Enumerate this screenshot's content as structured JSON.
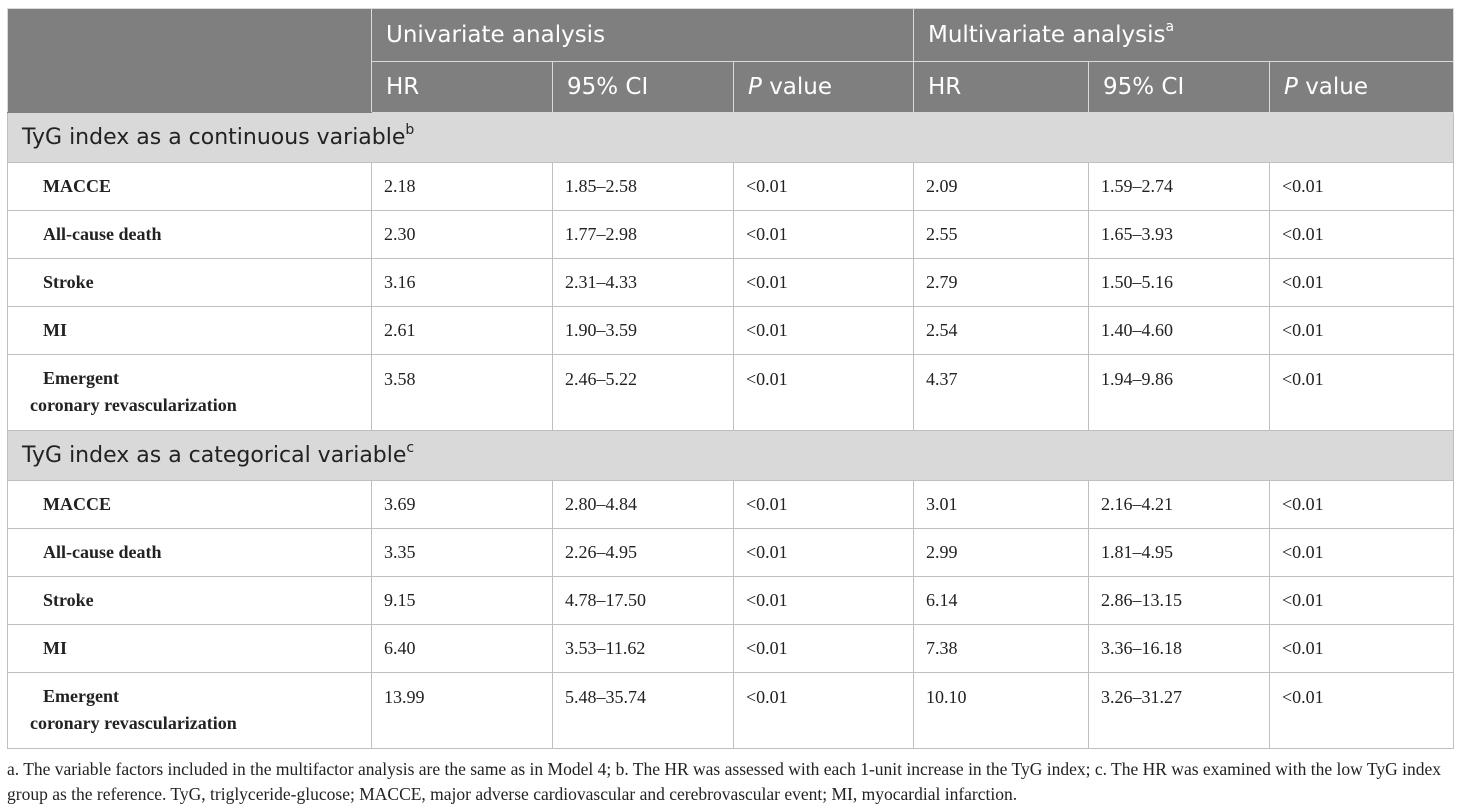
{
  "header": {
    "group_univariate": "Univariate analysis",
    "group_multivariate": "Multivariate analysis",
    "group_multivariate_sup": "a",
    "columns": [
      "HR",
      "95% CI",
      "P",
      "value",
      "HR",
      "95% CI",
      "P",
      "value"
    ]
  },
  "sections": [
    {
      "title": "TyG index as a continuous variable",
      "sup": "b",
      "rows": [
        {
          "label": "MACCE",
          "label2": "",
          "u_hr": "2.18",
          "u_ci": "1.85–2.58",
          "u_p": "<0.01",
          "m_hr": "2.09",
          "m_ci": "1.59–2.74",
          "m_p": "<0.01"
        },
        {
          "label": "All-cause death",
          "label2": "",
          "u_hr": "2.30",
          "u_ci": "1.77–2.98",
          "u_p": "<0.01",
          "m_hr": "2.55",
          "m_ci": "1.65–3.93",
          "m_p": "<0.01"
        },
        {
          "label": "Stroke",
          "label2": "",
          "u_hr": "3.16",
          "u_ci": "2.31–4.33",
          "u_p": "<0.01",
          "m_hr": "2.79",
          "m_ci": "1.50–5.16",
          "m_p": "<0.01"
        },
        {
          "label": "MI",
          "label2": "",
          "u_hr": "2.61",
          "u_ci": "1.90–3.59",
          "u_p": "<0.01",
          "m_hr": "2.54",
          "m_ci": "1.40–4.60",
          "m_p": "<0.01"
        },
        {
          "label": "Emergent",
          "label2": "coronary revascularization",
          "u_hr": "3.58",
          "u_ci": "2.46–5.22",
          "u_p": "<0.01",
          "m_hr": "4.37",
          "m_ci": "1.94–9.86",
          "m_p": "<0.01"
        }
      ]
    },
    {
      "title": "TyG index as a categorical variable",
      "sup": "c",
      "rows": [
        {
          "label": "MACCE",
          "label2": "",
          "u_hr": "3.69",
          "u_ci": "2.80–4.84",
          "u_p": "<0.01",
          "m_hr": "3.01",
          "m_ci": "2.16–4.21",
          "m_p": "<0.01"
        },
        {
          "label": "All-cause death",
          "label2": "",
          "u_hr": "3.35",
          "u_ci": "2.26–4.95",
          "u_p": "<0.01",
          "m_hr": "2.99",
          "m_ci": "1.81–4.95",
          "m_p": "<0.01"
        },
        {
          "label": "Stroke",
          "label2": "",
          "u_hr": "9.15",
          "u_ci": "4.78–17.50",
          "u_p": "<0.01",
          "m_hr": "6.14",
          "m_ci": "2.86–13.15",
          "m_p": "<0.01"
        },
        {
          "label": "MI",
          "label2": "",
          "u_hr": "6.40",
          "u_ci": "3.53–11.62",
          "u_p": "<0.01",
          "m_hr": "7.38",
          "m_ci": "3.36–16.18",
          "m_p": "<0.01"
        },
        {
          "label": "Emergent",
          "label2": "coronary revascularization",
          "u_hr": "13.99",
          "u_ci": "5.48–35.74",
          "u_p": "<0.01",
          "m_hr": "10.10",
          "m_ci": "3.26–31.27",
          "m_p": "<0.01"
        }
      ]
    }
  ],
  "footnote": "a. The variable factors included in the multifactor analysis are the same as in Model 4; b. The HR was assessed with each 1-unit increase in the TyG index; c. The HR was examined with the low TyG index group as the reference. TyG, triglyceride-glucose; MACCE, major adverse cardiovascular and cerebrovascular event; MI, myocardial infarction.",
  "colors": {
    "header_bg": "#7f7f7f",
    "section_bg": "#d9d9d9",
    "border": "#bfbfbf"
  }
}
